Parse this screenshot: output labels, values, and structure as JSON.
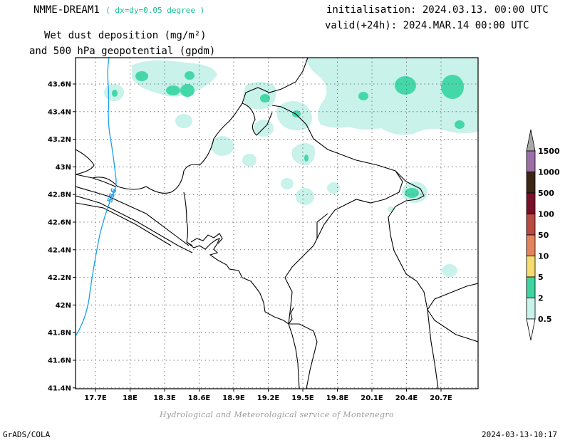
{
  "header": {
    "model": "NMME-DREAM1",
    "resolution": "( dx=dy=0.05 degree )",
    "field_line1": "Wet dust deposition (mg/m²)",
    "field_line2": "and 500 hPa geopotential (gpdm)",
    "init_text": "initialisation: 2024.03.13. 00:00 UTC",
    "valid_text": "valid(+24h): 2024.MAR.14 00:00 UTC"
  },
  "map": {
    "lat_ticks": [
      "43.6N",
      "43.4N",
      "43.2N",
      "43N",
      "42.8N",
      "42.6N",
      "42.4N",
      "42.2N",
      "42N",
      "41.8N",
      "41.6N",
      "41.4N"
    ],
    "lon_ticks": [
      "17.7E",
      "18E",
      "18.3E",
      "18.6E",
      "18.9E",
      "19.2E",
      "19.5E",
      "19.8E",
      "20.1E",
      "20.4E",
      "20.7E"
    ],
    "contour_label": "556",
    "colors": {
      "level_0_5": "#c8f2ea",
      "level_2": "#44d7a8",
      "contour": "#1aa0ee",
      "coastline": "#000000",
      "grid": "#777777"
    }
  },
  "colorbar": {
    "labels": [
      "1500",
      "1000",
      "500",
      "100",
      "50",
      "10",
      "5",
      "2",
      "0.5"
    ],
    "colors": [
      "#9b6fa6",
      "#3c2616",
      "#7a0f2a",
      "#b84a41",
      "#e4845e",
      "#f6dc6e",
      "#40d49f",
      "#c8f2ea"
    ],
    "top_arrow_color": "#a8a8a8"
  },
  "footer": {
    "credit": "Hydrological and Meteorological service of Montenegro",
    "software": "GrADS/COLA",
    "timestamp": "2024-03-13-10:17"
  }
}
